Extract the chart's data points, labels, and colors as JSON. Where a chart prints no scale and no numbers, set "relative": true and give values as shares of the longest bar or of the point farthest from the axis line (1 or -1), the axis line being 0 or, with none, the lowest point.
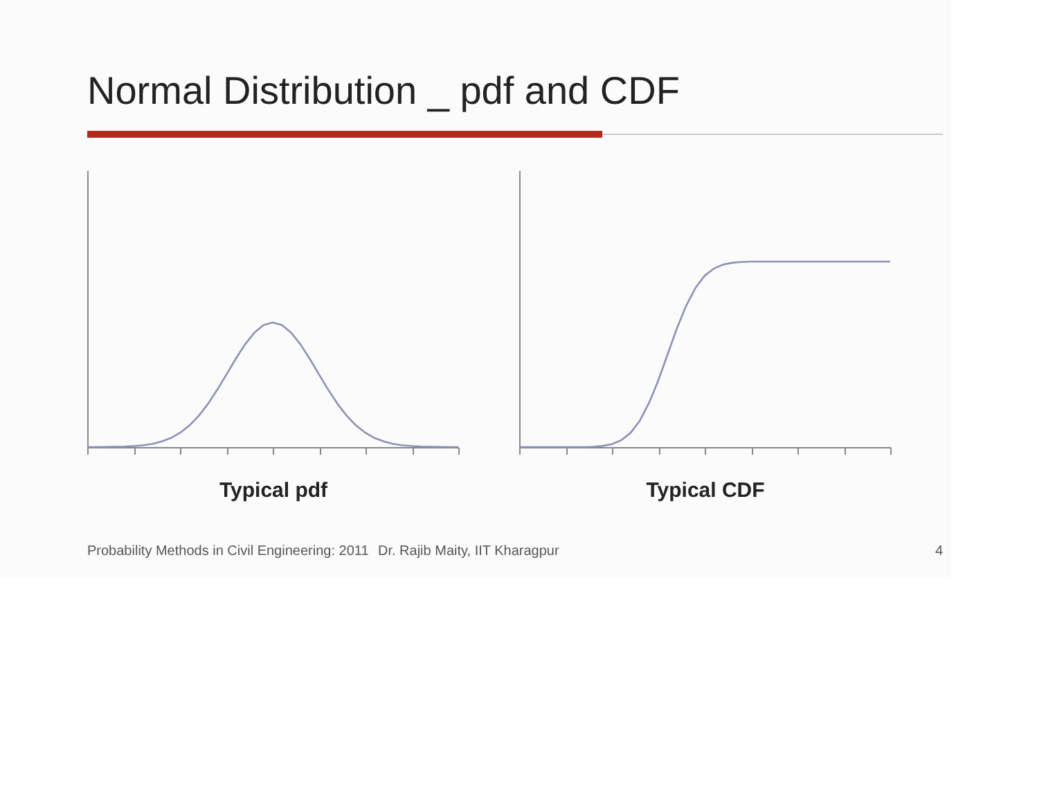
{
  "chart_data": [
    {
      "type": "line",
      "title": "Normal Distribution _ pdf and CDF",
      "xlabel": "Typical pdf",
      "relative": true,
      "line_style": "solid",
      "categories": [
        null,
        null,
        null,
        null,
        null,
        null,
        null,
        null,
        null,
        null,
        null,
        null,
        null,
        null,
        null,
        null,
        null,
        null,
        null,
        null,
        null,
        null,
        null,
        null,
        null,
        null,
        null,
        null,
        null,
        null,
        null,
        null,
        null,
        null,
        null,
        null,
        null,
        null,
        null,
        null,
        null
      ],
      "series": [
        {
          "color": "#8d91b4",
          "values": [
            0.0,
            0.0,
            0.001,
            0.002,
            0.004,
            0.008,
            0.014,
            0.025,
            0.044,
            0.072,
            0.114,
            0.172,
            0.249,
            0.345,
            0.458,
            0.581,
            0.707,
            0.823,
            0.917,
            0.979,
            1.0,
            0.979,
            0.917,
            0.823,
            0.707,
            0.581,
            0.458,
            0.345,
            0.249,
            0.172,
            0.114,
            0.072,
            0.044,
            0.025,
            0.014,
            0.008,
            0.004,
            0.002,
            0.001,
            0.0,
            0.0
          ]
        }
      ]
    },
    {
      "type": "line",
      "xlabel": "Typical CDF",
      "annotations": [
        "Probability Methods in Civil Engineering: 2011",
        "Dr. Rajib Maity, IIT Kharagpur",
        "4"
      ],
      "relative": true,
      "line_style": "solid",
      "categories": [
        null,
        null,
        null,
        null,
        null,
        null,
        null,
        null,
        null,
        null,
        null,
        null,
        null,
        null,
        null,
        null,
        null,
        null,
        null,
        null,
        null,
        null,
        null,
        null,
        null,
        null,
        null,
        null,
        null,
        null,
        null,
        null,
        null,
        null,
        null,
        null,
        null,
        null,
        null,
        null,
        null
      ],
      "series": [
        {
          "color": "#8d91b4",
          "values": [
            0.0,
            0.0,
            0.0,
            0.0,
            0.0,
            0.0,
            0.0,
            0.0,
            0.002,
            0.006,
            0.016,
            0.037,
            0.076,
            0.142,
            0.238,
            0.36,
            0.5,
            0.64,
            0.762,
            0.858,
            0.924,
            0.963,
            0.984,
            0.994,
            0.998,
            1.0,
            1.0,
            1.0,
            1.0,
            1.0,
            1.0,
            1.0,
            1.0,
            1.0,
            1.0,
            1.0,
            1.0,
            1.0,
            1.0,
            1.0,
            1.0
          ]
        }
      ]
    }
  ]
}
